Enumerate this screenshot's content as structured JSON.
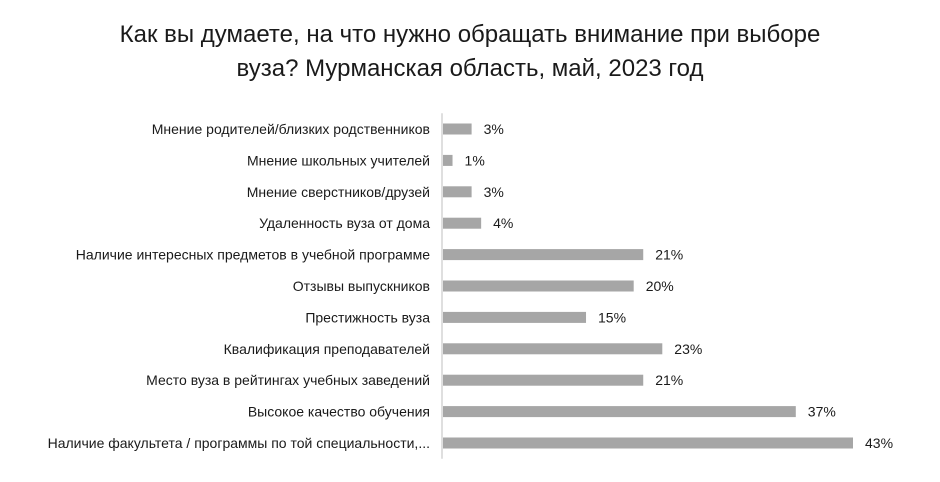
{
  "chart_data": {
    "type": "bar",
    "orientation": "horizontal",
    "title": "Как вы думаете, на что нужно обращать внимание при выборе\nвуза? Мурманская область, май, 2023 год",
    "categories": [
      "Мнение родителей/близких родственников",
      "Мнение школьных учителей",
      "Мнение сверстников/друзей",
      "Удаленность вуза от дома",
      "Наличие интересных предметов в учебной программе",
      "Отзывы выпускников",
      "Престижность вуза",
      "Квалификация преподавателей",
      "Место вуза в рейтингах учебных заведений",
      "Высокое качество обучения",
      "Наличие факультета / программы по той специальности,..."
    ],
    "values": [
      3,
      1,
      3,
      4,
      21,
      20,
      15,
      23,
      21,
      37,
      43
    ],
    "value_labels": [
      "3%",
      "1%",
      "3%",
      "4%",
      "21%",
      "20%",
      "15%",
      "23%",
      "21%",
      "37%",
      "43%"
    ],
    "unit": "%",
    "xlim": [
      0,
      43
    ],
    "grid": false,
    "legend": "none",
    "bar_color": "#a6a6a6",
    "axis_color": "#bfbfbf"
  }
}
